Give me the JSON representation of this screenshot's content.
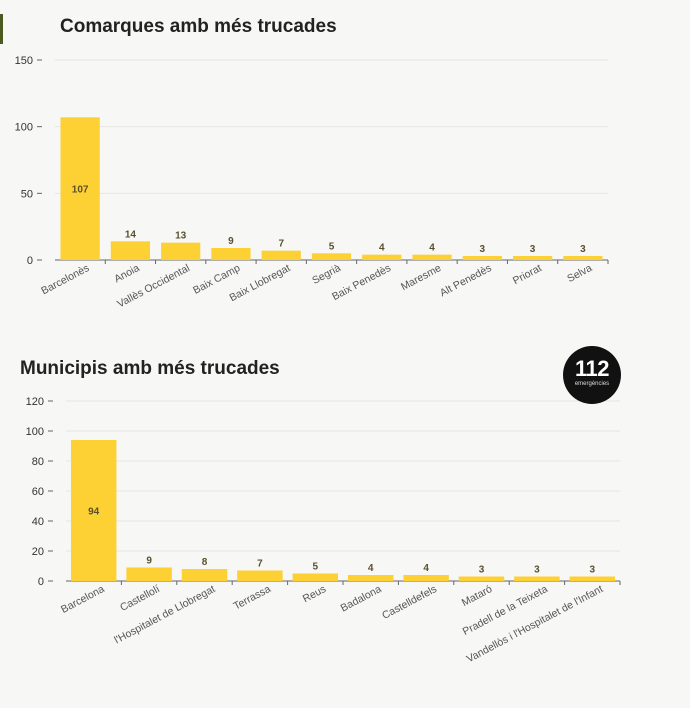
{
  "colors": {
    "bar": "#fdd033",
    "grid": "#e6e6e6",
    "text": "#333333",
    "axis": "#666666"
  },
  "logo": {
    "number": "112",
    "subtitle": "emergències"
  },
  "chart_data": [
    {
      "type": "bar",
      "title": "Comarques amb més trucades",
      "categories": [
        "Barcelonès",
        "Anoia",
        "Vallès Occidental",
        "Baix Camp",
        "Baix Llobregat",
        "Segrià",
        "Baix Penedès",
        "Maresme",
        "Alt Penedès",
        "Priorat",
        "Selva"
      ],
      "values": [
        107,
        14,
        13,
        9,
        7,
        5,
        4,
        4,
        3,
        3,
        3
      ],
      "ylim": [
        0,
        150
      ],
      "yticks": [
        0,
        50,
        100,
        150
      ],
      "grid": true,
      "xlabel": "",
      "ylabel": ""
    },
    {
      "type": "bar",
      "title": "Municipis amb més trucades",
      "categories": [
        "Barcelona",
        "Castellolí",
        "l'Hospitalet de Llobregat",
        "Terrassa",
        "Reus",
        "Badalona",
        "Castelldefels",
        "Mataró",
        "Pradell de la Teixeta",
        "Vandellòs i l'Hospitalet de l'Infant"
      ],
      "values": [
        94,
        9,
        8,
        7,
        5,
        4,
        4,
        3,
        3,
        3
      ],
      "ylim": [
        0,
        120
      ],
      "yticks": [
        0,
        20,
        40,
        60,
        80,
        100,
        120
      ],
      "grid": true,
      "xlabel": "",
      "ylabel": ""
    }
  ]
}
